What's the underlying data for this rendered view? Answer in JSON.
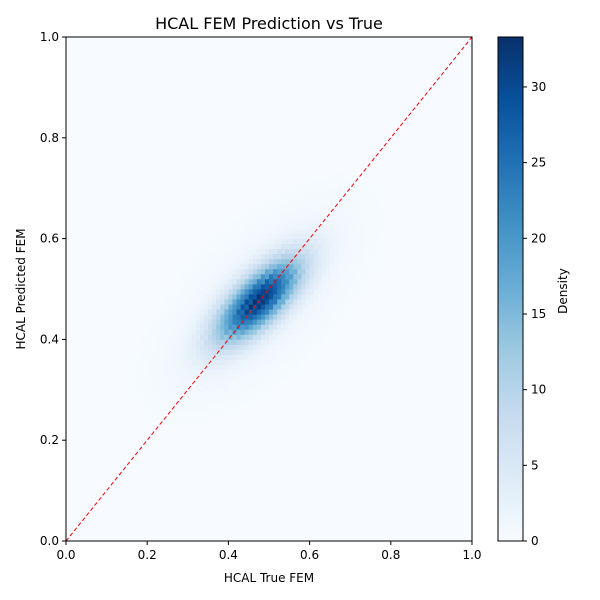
{
  "chart_data": {
    "type": "heatmap",
    "title": "HCAL FEM Prediction vs True",
    "xlabel": "HCAL True FEM",
    "ylabel": "HCAL Predicted FEM",
    "xlim": [
      0.0,
      1.0
    ],
    "ylim": [
      0.0,
      1.0
    ],
    "x_ticks": [
      "0.0",
      "0.2",
      "0.4",
      "0.6",
      "0.8",
      "1.0"
    ],
    "y_ticks": [
      "0.0",
      "0.2",
      "0.4",
      "0.6",
      "0.8",
      "1.0"
    ],
    "grid": false,
    "colormap": "Blues",
    "colorbar": {
      "label": "Density",
      "range": [
        0,
        33.3
      ],
      "ticks": [
        "0",
        "5",
        "10",
        "15",
        "20",
        "25",
        "30"
      ]
    },
    "bins": 100,
    "density_model": {
      "center": [
        0.475,
        0.478
      ],
      "sigma_major": 0.085,
      "sigma_minor": 0.033,
      "angle_deg": 36,
      "peak": 33.3
    },
    "reference_line": {
      "from": [
        0.0,
        0.0
      ],
      "to": [
        1.0,
        1.0
      ],
      "color": "#ff0000",
      "style": "dashed"
    }
  }
}
